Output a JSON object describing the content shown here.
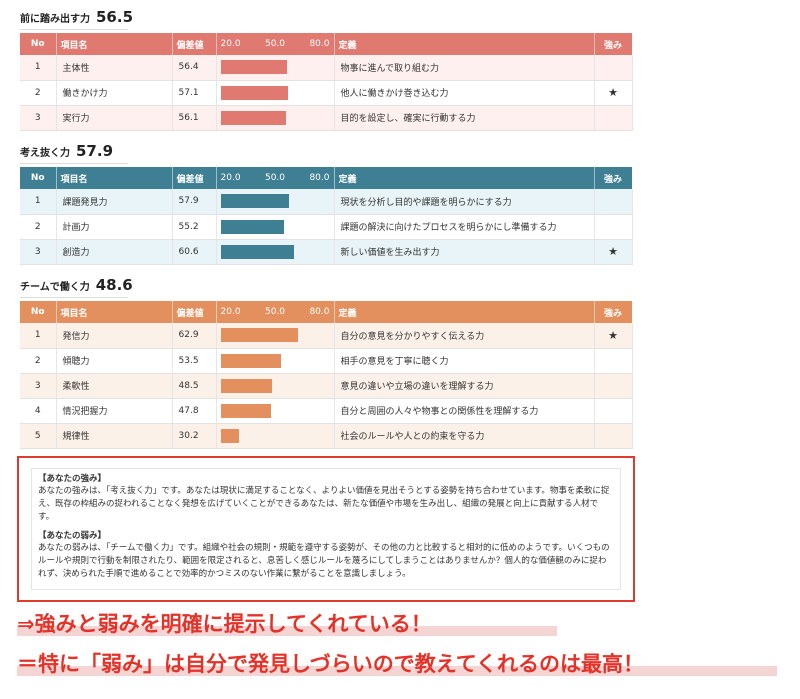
{
  "scale": {
    "min": "20.0",
    "mid": "50.0",
    "max": "80.0"
  },
  "headers": {
    "no": "No",
    "name": "項目名",
    "score": "偏差値",
    "definition": "定義",
    "strength": "強み"
  },
  "sections": [
    {
      "title": "前に踏み出す力",
      "score": "56.5",
      "rows": [
        {
          "no": "1",
          "name": "主体性",
          "score": "56.4",
          "value": 56.4,
          "definition": "物事に進んで取り組む力",
          "star": ""
        },
        {
          "no": "2",
          "name": "働きかけ力",
          "score": "57.1",
          "value": 57.1,
          "definition": "他人に働きかけ巻き込む力",
          "star": "★"
        },
        {
          "no": "3",
          "name": "実行力",
          "score": "56.1",
          "value": 56.1,
          "definition": "目的を設定し、確実に行動する力",
          "star": ""
        }
      ]
    },
    {
      "title": "考え抜く力",
      "score": "57.9",
      "rows": [
        {
          "no": "1",
          "name": "課題発見力",
          "score": "57.9",
          "value": 57.9,
          "definition": "現状を分析し目的や課題を明らかにする力",
          "star": ""
        },
        {
          "no": "2",
          "name": "計画力",
          "score": "55.2",
          "value": 55.2,
          "definition": "課題の解決に向けたプロセスを明らかにし準備する力",
          "star": ""
        },
        {
          "no": "3",
          "name": "創造力",
          "score": "60.6",
          "value": 60.6,
          "definition": "新しい価値を生み出す力",
          "star": "★"
        }
      ]
    },
    {
      "title": "チームで働く力",
      "score": "48.6",
      "rows": [
        {
          "no": "1",
          "name": "発信力",
          "score": "62.9",
          "value": 62.9,
          "definition": "自分の意見を分かりやすく伝える力",
          "star": "★"
        },
        {
          "no": "2",
          "name": "傾聴力",
          "score": "53.5",
          "value": 53.5,
          "definition": "相手の意見を丁寧に聴く力",
          "star": ""
        },
        {
          "no": "3",
          "name": "柔軟性",
          "score": "48.5",
          "value": 48.5,
          "definition": "意見の違いや立場の違いを理解する力",
          "star": ""
        },
        {
          "no": "4",
          "name": "情況把握力",
          "score": "47.8",
          "value": 47.8,
          "definition": "自分と周囲の人々や物事との関係性を理解する力",
          "star": ""
        },
        {
          "no": "5",
          "name": "規律性",
          "score": "30.2",
          "value": 30.2,
          "definition": "社会のルールや人との約束を守る力",
          "star": ""
        }
      ]
    }
  ],
  "summary": {
    "strength_heading": "【あなたの強み】",
    "strength_text": "あなたの強みは、「考え抜く力」です。あなたは現状に満足することなく、よりよい価値を見出そうとする姿勢を持ち合わせています。物事を柔軟に捉え、既存の枠組みの捉われることなく発想を広げていくことができるあなたは、新たな価値や市場を生み出し、組織の発展と向上に貢献する人材です。",
    "weakness_heading": "【あなたの弱み】",
    "weakness_text": "あなたの弱みは、「チームで働く力」です。組織や社会の規則・規範を遵守する姿勢が、その他の力と比較すると相対的に低めのようです。いくつものルールや規則で行動を制限されたり、範囲を限定されると、息苦しく感じルールを蔑ろにしてしまうことはありませんか？個人的な価値観のみに捉われず、決められた手順で進めることで効率的かつミスのない作業に繋がることを意識しましょう。"
  },
  "callouts": {
    "line1": "⇒強みと弱みを明確に提示してくれている！",
    "line2": "＝特に「弱み」は自分で発見しづらいので教えてくれるのは最高！"
  },
  "colors": {
    "red": "#e07970",
    "blue": "#3f7f94",
    "orange": "#e4905e",
    "callout": "#e53228"
  }
}
